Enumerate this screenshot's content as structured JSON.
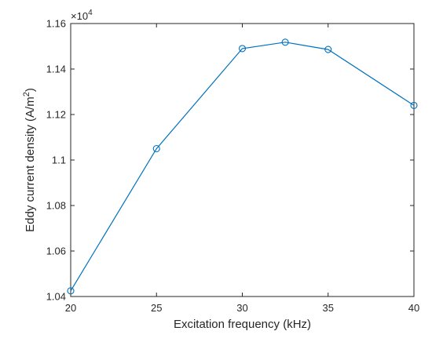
{
  "chart_data": {
    "type": "line",
    "xlabel": "Excitation frequency (kHz)",
    "ylabel_text": "Eddy current density (A/m",
    "ylabel_sup": "2",
    "ylabel_close": ")",
    "y_multiplier": {
      "prefix": "×10",
      "exponent": "4"
    },
    "xlim": [
      20,
      40
    ],
    "ylim": [
      1.04,
      1.16
    ],
    "xticks": [
      20,
      25,
      30,
      35,
      40
    ],
    "xtick_labels": [
      "20",
      "25",
      "30",
      "35",
      "40"
    ],
    "yticks": [
      1.04,
      1.06,
      1.08,
      1.1,
      1.12,
      1.14,
      1.16
    ],
    "ytick_labels": [
      "1.04",
      "1.06",
      "1.08",
      "1.1",
      "1.12",
      "1.14",
      "1.16"
    ],
    "grid": false,
    "legend": "none",
    "series": [
      {
        "x": [
          20,
          25,
          30,
          32.5,
          35,
          40
        ],
        "y": [
          1.0425,
          1.105,
          1.149,
          1.1518,
          1.1486,
          1.124
        ],
        "color": "#0072BD",
        "marker": "circle"
      }
    ]
  }
}
